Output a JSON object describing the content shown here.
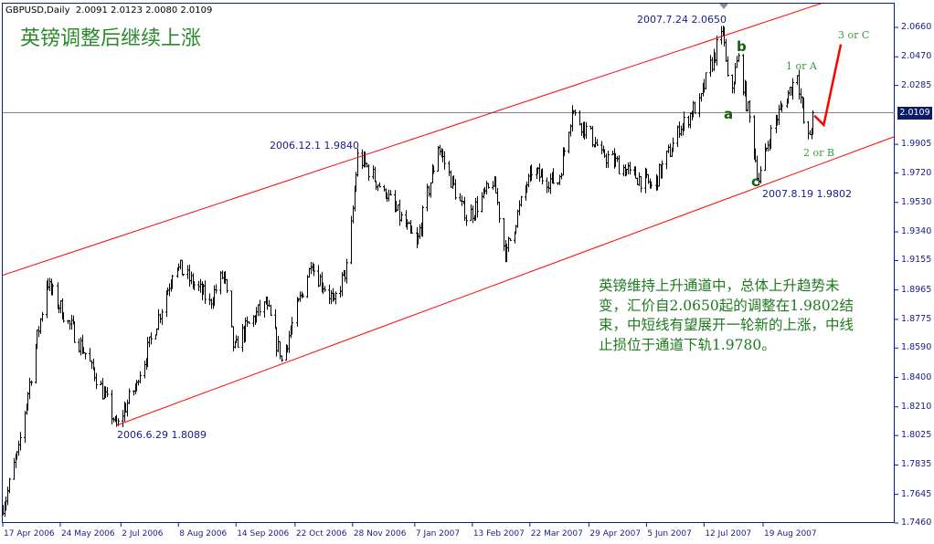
{
  "header": {
    "symbol": "GBPUSD,Daily",
    "ohlc": "2.0091 2.0123 2.0080 2.0109"
  },
  "title": "英镑调整后继续上涨",
  "note": "英镑维持上升通道中，总体上升趋势未变，汇价自2.0650起的调整在1.9802结束，中短线有望展开一轮新的上涨，中线止损位于通道下轨1.9780。",
  "annotations": {
    "high": "2007.7.24 2.0650",
    "low_jun": "2006.6.29 1.8089",
    "high_dec": "2006.12.1 1.9840",
    "low_aug": "2007.8.19 1.9802",
    "wave_a": "a",
    "wave_b": "b",
    "wave_c": "c",
    "wave_1": "1 or A",
    "wave_2": "2 or B",
    "wave_3": "3 or C"
  },
  "colors": {
    "bars": "#000000",
    "channel": "#ff0000",
    "projection": "#ff0000",
    "current_line": "#808890",
    "axis": "#0b1c8a",
    "text_green": "#1e7a1e"
  },
  "chart_data": {
    "type": "ohlc",
    "symbol": "GBPUSD",
    "timeframe": "Daily",
    "ylim": [
      1.746,
      2.066
    ],
    "yticks": [
      "2.0660",
      "2.0470",
      "2.0285",
      "1.9905",
      "1.9720",
      "1.9530",
      "1.9340",
      "1.9155",
      "1.8965",
      "1.8775",
      "1.8590",
      "1.8400",
      "1.8210",
      "1.8025",
      "1.7835",
      "1.7645",
      "1.7460"
    ],
    "xticks": [
      "17 Apr 2006",
      "24 May 2006",
      "2 Jul 2006",
      "8 Aug 2006",
      "14 Sep 2006",
      "22 Oct 2006",
      "28 Nov 2006",
      "7 Jan 2007",
      "13 Feb 2007",
      "22 Mar 2007",
      "29 Apr 2007",
      "5 Jun 2007",
      "12 Jul 2007",
      "19 Aug 2007"
    ],
    "current_price": "2.0109",
    "swing_points": [
      [
        "2006-04-17",
        1.754
      ],
      [
        "2006-04-27",
        1.795
      ],
      [
        "2006-05-15",
        1.901
      ],
      [
        "2006-05-29",
        1.876
      ],
      [
        "2006-06-13",
        1.848
      ],
      [
        "2006-06-29",
        1.809
      ],
      [
        "2006-07-12",
        1.836
      ],
      [
        "2006-08-06",
        1.913
      ],
      [
        "2006-08-28",
        1.889
      ],
      [
        "2006-09-06",
        1.907
      ],
      [
        "2006-09-12",
        1.86
      ],
      [
        "2006-10-03",
        1.889
      ],
      [
        "2006-10-13",
        1.851
      ],
      [
        "2006-11-01",
        1.913
      ],
      [
        "2006-11-16",
        1.889
      ],
      [
        "2006-11-25",
        1.913
      ],
      [
        "2006-12-01",
        1.984
      ],
      [
        "2006-12-18",
        1.96
      ],
      [
        "2007-01-08",
        1.926
      ],
      [
        "2007-01-22",
        1.989
      ],
      [
        "2007-02-09",
        1.942
      ],
      [
        "2007-02-27",
        1.966
      ],
      [
        "2007-03-06",
        1.919
      ],
      [
        "2007-03-22",
        1.972
      ],
      [
        "2007-04-09",
        1.966
      ],
      [
        "2007-04-18",
        2.013
      ],
      [
        "2007-05-08",
        1.984
      ],
      [
        "2007-05-26",
        1.972
      ],
      [
        "2007-06-09",
        1.963
      ],
      [
        "2007-06-27",
        2.001
      ],
      [
        "2007-07-09",
        2.019
      ],
      [
        "2007-07-24",
        2.065
      ],
      [
        "2007-07-28",
        2.019
      ],
      [
        "2007-08-03",
        2.047
      ],
      [
        "2007-08-12",
        1.995
      ],
      [
        "2007-08-16",
        1.967
      ],
      [
        "2007-08-24",
        2.0
      ],
      [
        "2007-09-10",
        2.036
      ],
      [
        "2007-09-16",
        1.989
      ],
      [
        "2007-09-21",
        2.011
      ]
    ],
    "channel_upper": [
      [
        "2006-04-17",
        1.906
      ],
      [
        "2007-08-19",
        2.069
      ]
    ],
    "channel_lower": [
      [
        "2006-06-29",
        1.809
      ],
      [
        "2007-08-19",
        1.964
      ]
    ],
    "projection": [
      [
        "2007-09-21",
        2.009
      ],
      [
        "2007-09-27",
        2.003
      ],
      [
        "2007-10-08",
        2.055
      ]
    ]
  }
}
